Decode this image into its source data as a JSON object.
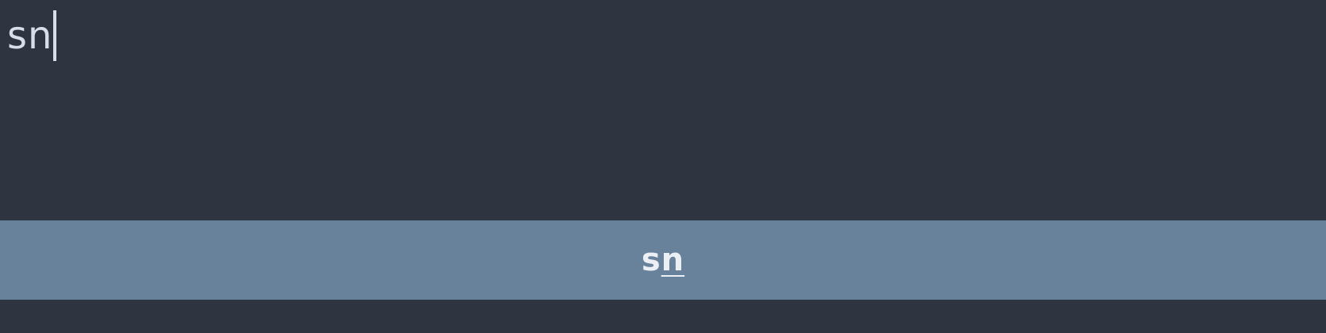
{
  "search": {
    "prefix": "sn",
    "suffix": ""
  },
  "results": [
    {
      "unmatched": "s",
      "matched": "n",
      "selected": true
    }
  ],
  "colors": {
    "background": "#2e3440",
    "text": "#d8dee9",
    "selected_item": "#68829b",
    "selected_text": "#eceff4"
  },
  "icons": []
}
